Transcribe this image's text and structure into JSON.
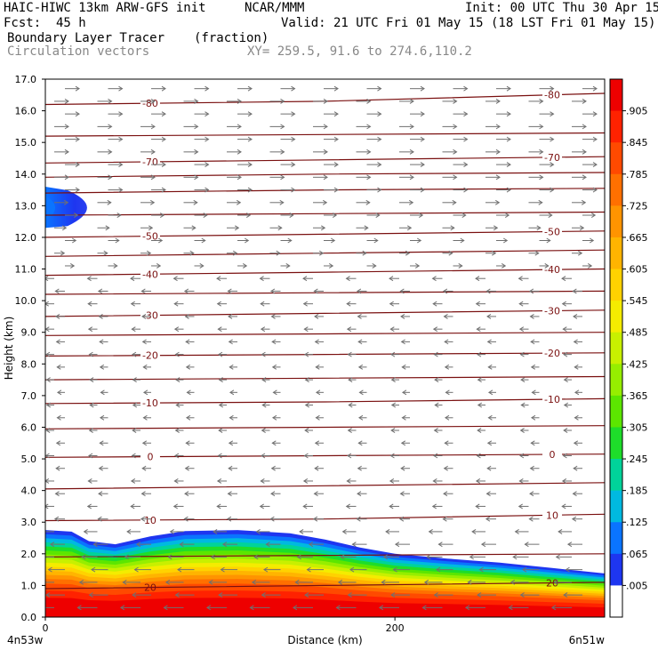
{
  "header": {
    "model": "HAIC-HIWC 13km ARW-GFS init",
    "org": "NCAR/MMM",
    "init": "Init: 00 UTC Thu 30 Apr 15",
    "fcst": "Fcst:  45 h",
    "valid": "Valid: 21 UTC Fri 01 May 15 (18 LST Fri 01 May 15)",
    "field": "Boundary Layer Tracer",
    "units": "(fraction)",
    "vectors": "Circulation vectors",
    "xy": "XY= 259.5, 91.6 to 274.6,110.2"
  },
  "chart_data": {
    "type": "heatmap",
    "xlabel": "Distance (km)",
    "ylabel": "Height (km)",
    "xlim": [
      0,
      320
    ],
    "ylim": [
      0,
      17
    ],
    "yticks": [
      "0.0",
      "1.0",
      "2.0",
      "3.0",
      "4.0",
      "5.0",
      "6.0",
      "7.0",
      "8.0",
      "9.0",
      "10.0",
      "11.0",
      "12.0",
      "13.0",
      "14.0",
      "15.0",
      "16.0",
      "17.0"
    ],
    "xticks": [
      {
        "value": 0,
        "label": "0"
      },
      {
        "value": 200,
        "label": "200"
      }
    ],
    "endpoints": {
      "left": "4n53w",
      "right": "6n51w"
    },
    "colorbar_labels": [
      ".905",
      ".845",
      ".785",
      ".725",
      ".665",
      ".605",
      ".545",
      ".485",
      ".425",
      ".365",
      ".305",
      ".245",
      ".185",
      ".125",
      ".065",
      ".005"
    ],
    "colorbar_colors": [
      "#ee0000",
      "#ff2200",
      "#ff4a00",
      "#ff7000",
      "#ff9400",
      "#ffb400",
      "#ffd200",
      "#f4ec00",
      "#c8f000",
      "#96ee00",
      "#5ce600",
      "#1edd2a",
      "#00d39a",
      "#00b9e0",
      "#0a74ff",
      "#1e36f0",
      "#ffffff"
    ],
    "temperature_contours": [
      {
        "label": "20",
        "y": [
          0.9,
          1.0,
          1.1
        ]
      },
      {
        "label": "10",
        "y": [
          3.05,
          3.1,
          3.25
        ]
      },
      {
        "label": "0",
        "y": [
          5.05,
          5.1,
          5.15
        ]
      },
      {
        "label": "-10",
        "y": [
          6.75,
          6.8,
          6.9
        ]
      },
      {
        "label": "-20",
        "y": [
          8.25,
          8.3,
          8.35
        ]
      },
      {
        "label": "-30",
        "y": [
          9.5,
          9.6,
          9.7
        ]
      },
      {
        "label": "-40",
        "y": [
          10.8,
          10.9,
          11.0
        ]
      },
      {
        "label": "-50",
        "y": [
          12.0,
          12.1,
          12.2
        ]
      },
      {
        "label": "-70",
        "y": [
          14.35,
          14.45,
          14.55
        ]
      },
      {
        "label": "-80",
        "y": [
          16.2,
          16.3,
          16.55
        ]
      },
      {
        "label": "",
        "y": [
          1.9,
          1.95,
          2.0
        ]
      },
      {
        "label": "",
        "y": [
          4.05,
          4.15,
          4.25
        ]
      },
      {
        "label": "",
        "y": [
          5.95,
          6.0,
          6.05
        ]
      },
      {
        "label": "",
        "y": [
          7.5,
          7.55,
          7.6
        ]
      },
      {
        "label": "",
        "y": [
          8.9,
          8.95,
          9.0
        ]
      },
      {
        "label": "",
        "y": [
          10.2,
          10.25,
          10.3
        ]
      },
      {
        "label": "",
        "y": [
          11.4,
          11.5,
          11.6
        ]
      },
      {
        "label": "",
        "y": [
          12.7,
          12.75,
          12.8
        ]
      },
      {
        "label": "",
        "y": [
          13.4,
          13.5,
          13.55
        ]
      },
      {
        "label": "",
        "y": [
          13.9,
          14.0,
          14.05
        ]
      },
      {
        "label": "",
        "y": [
          15.2,
          15.25,
          15.3
        ]
      }
    ],
    "contour_label_positions": {
      "left_x": 60,
      "right_x": 290
    },
    "boundary_layer_top_km": [
      {
        "x": 0,
        "y": 2.75
      },
      {
        "x": 15,
        "y": 2.7
      },
      {
        "x": 25,
        "y": 2.4
      },
      {
        "x": 40,
        "y": 2.3
      },
      {
        "x": 60,
        "y": 2.55
      },
      {
        "x": 80,
        "y": 2.72
      },
      {
        "x": 110,
        "y": 2.75
      },
      {
        "x": 140,
        "y": 2.65
      },
      {
        "x": 160,
        "y": 2.45
      },
      {
        "x": 180,
        "y": 2.2
      },
      {
        "x": 200,
        "y": 2.0
      },
      {
        "x": 230,
        "y": 1.85
      },
      {
        "x": 260,
        "y": 1.72
      },
      {
        "x": 290,
        "y": 1.55
      },
      {
        "x": 320,
        "y": 1.38
      }
    ],
    "upper_tracer_blob": {
      "x_extent_km": [
        0,
        35
      ],
      "y_range_km": [
        12.3,
        13.6
      ]
    },
    "wind_rows_km": [
      0.3,
      0.7,
      1.1,
      1.5,
      1.9,
      2.3,
      2.7,
      3.1,
      3.5,
      3.9,
      4.3,
      4.7,
      5.1,
      5.5,
      5.9,
      6.3,
      6.7,
      7.1,
      7.5,
      7.9,
      8.3,
      8.7,
      9.1,
      9.5,
      9.9,
      10.3,
      10.7,
      11.1,
      11.5,
      11.9,
      12.3,
      12.7,
      13.1,
      13.5,
      13.9,
      14.3,
      14.7,
      15.1,
      15.5,
      15.9,
      16.3,
      16.7
    ],
    "wind_direction_note": "easterly below ~10 km, westerly above ~11 km"
  }
}
